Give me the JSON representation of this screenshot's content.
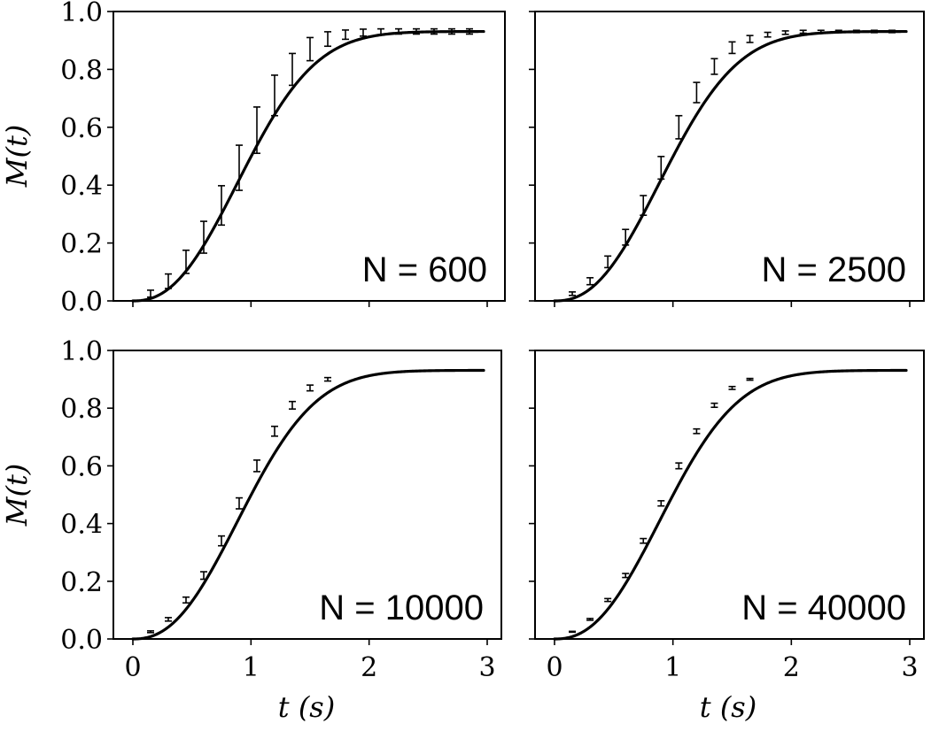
{
  "figure": {
    "ylabel": "M(t)",
    "xlabel": "t (s)",
    "colors": {
      "line": "#000000",
      "background": "#ffffff"
    }
  },
  "chart_data": [
    {
      "type": "line",
      "panel": "top-left",
      "annotation": "N = 600",
      "xlabel": "",
      "ylabel": "M(t)",
      "xlim": [
        -0.15,
        3.1
      ],
      "ylim": [
        0.0,
        1.0
      ],
      "xticks": [
        0,
        1,
        2,
        3
      ],
      "xtick_labels_visible": false,
      "yticks": [
        0.0,
        0.2,
        0.4,
        0.6,
        0.8,
        1.0
      ],
      "ytick_labels": [
        "0.0",
        "0.2",
        "0.4",
        "0.6",
        "0.8",
        "1.0"
      ],
      "grid": false,
      "x": [
        0.15,
        0.3,
        0.45,
        0.6,
        0.75,
        0.9,
        1.05,
        1.2,
        1.35,
        1.5,
        1.65,
        1.8,
        1.95,
        2.1,
        2.25,
        2.4,
        2.55,
        2.7,
        2.85
      ],
      "values": [
        0.025,
        0.068,
        0.135,
        0.22,
        0.33,
        0.46,
        0.59,
        0.71,
        0.8,
        0.87,
        0.905,
        0.92,
        0.927,
        0.93,
        0.931,
        0.931,
        0.931,
        0.931,
        0.931
      ],
      "errors": [
        0.012,
        0.025,
        0.04,
        0.055,
        0.068,
        0.078,
        0.08,
        0.07,
        0.055,
        0.04,
        0.025,
        0.016,
        0.012,
        0.01,
        0.009,
        0.009,
        0.009,
        0.009,
        0.009
      ],
      "plateau": 0.931
    },
    {
      "type": "line",
      "panel": "top-right",
      "annotation": "N = 2500",
      "xlabel": "",
      "ylabel": "",
      "xlim": [
        -0.15,
        3.1
      ],
      "ylim": [
        0.0,
        1.0
      ],
      "xticks": [
        0,
        1,
        2,
        3
      ],
      "xtick_labels_visible": false,
      "ytick_labels_visible": false,
      "grid": false,
      "x": [
        0.15,
        0.3,
        0.45,
        0.6,
        0.75,
        0.9,
        1.05,
        1.2,
        1.35,
        1.5,
        1.65,
        1.8,
        1.95,
        2.1,
        2.25,
        2.4,
        2.55,
        2.7,
        2.85
      ],
      "values": [
        0.025,
        0.068,
        0.135,
        0.22,
        0.33,
        0.46,
        0.6,
        0.72,
        0.81,
        0.875,
        0.905,
        0.92,
        0.927,
        0.93,
        0.931,
        0.931,
        0.931,
        0.931,
        0.931
      ],
      "errors": [
        0.006,
        0.012,
        0.02,
        0.027,
        0.034,
        0.039,
        0.04,
        0.035,
        0.027,
        0.02,
        0.012,
        0.008,
        0.006,
        0.005,
        0.004,
        0.004,
        0.004,
        0.004,
        0.004
      ],
      "plateau": 0.931
    },
    {
      "type": "line",
      "panel": "bottom-left",
      "annotation": "N = 10000",
      "xlabel": "t (s)",
      "ylabel": "M(t)",
      "xlim": [
        -0.15,
        3.1
      ],
      "ylim": [
        0.0,
        1.0
      ],
      "xticks": [
        0,
        1,
        2,
        3
      ],
      "xtick_labels": [
        "0",
        "1",
        "2",
        "3"
      ],
      "yticks": [
        0.0,
        0.2,
        0.4,
        0.6,
        0.8,
        1.0
      ],
      "ytick_labels": [
        "0.0",
        "0.2",
        "0.4",
        "0.6",
        "0.8",
        "1.0"
      ],
      "grid": false,
      "x": [
        0.15,
        0.3,
        0.45,
        0.6,
        0.75,
        0.9,
        1.05,
        1.2,
        1.35,
        1.5,
        1.65
      ],
      "values": [
        0.025,
        0.068,
        0.135,
        0.22,
        0.34,
        0.47,
        0.6,
        0.72,
        0.81,
        0.87,
        0.9
      ],
      "errors": [
        0.003,
        0.006,
        0.01,
        0.013,
        0.017,
        0.019,
        0.02,
        0.017,
        0.013,
        0.01,
        0.006
      ],
      "plateau": 0.931
    },
    {
      "type": "line",
      "panel": "bottom-right",
      "annotation": "N = 40000",
      "xlabel": "t (s)",
      "ylabel": "",
      "xlim": [
        -0.15,
        3.1
      ],
      "ylim": [
        0.0,
        1.0
      ],
      "xticks": [
        0,
        1,
        2,
        3
      ],
      "xtick_labels": [
        "0",
        "1",
        "2",
        "3"
      ],
      "ytick_labels_visible": false,
      "grid": false,
      "x": [
        0.15,
        0.3,
        0.45,
        0.6,
        0.75,
        0.9,
        1.05,
        1.2,
        1.35,
        1.5,
        1.65
      ],
      "values": [
        0.025,
        0.068,
        0.135,
        0.22,
        0.34,
        0.47,
        0.6,
        0.72,
        0.81,
        0.87,
        0.9
      ],
      "errors": [
        0.0015,
        0.003,
        0.005,
        0.007,
        0.008,
        0.009,
        0.01,
        0.008,
        0.007,
        0.005,
        0.003
      ],
      "plateau": 0.931
    }
  ]
}
